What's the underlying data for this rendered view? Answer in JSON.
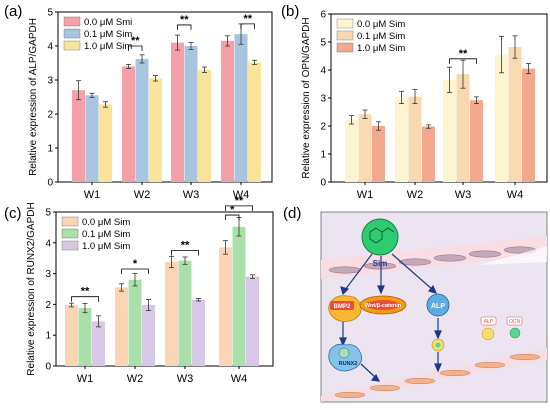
{
  "panels": {
    "a": "(a)",
    "b": "(b)",
    "c": "(c)",
    "d": "(d)"
  },
  "chart_data": [
    {
      "id": "a",
      "type": "bar",
      "ylabel": "Relative expression of ALP/GAPDH",
      "categories": [
        "W1",
        "W2",
        "W3",
        "W4"
      ],
      "ylim": [
        0,
        5
      ],
      "yticks": [
        0,
        1,
        2,
        3,
        4,
        5
      ],
      "legend_position": "top-left",
      "series": [
        {
          "name": "0.0 μM Smi",
          "color": "#f4a0a6",
          "values": [
            2.7,
            3.4,
            4.1,
            4.15
          ],
          "errors": [
            0.28,
            0.06,
            0.22,
            0.15
          ]
        },
        {
          "name": "0.1 μM Sim",
          "color": "#a9c4de",
          "values": [
            2.55,
            3.62,
            4.0,
            4.35
          ],
          "errors": [
            0.06,
            0.12,
            0.1,
            0.3
          ]
        },
        {
          "name": "1.0 μM Sim",
          "color": "#fbe39a",
          "values": [
            2.28,
            3.05,
            3.3,
            3.52
          ],
          "errors": [
            0.08,
            0.08,
            0.08,
            0.06
          ]
        }
      ],
      "annotations": [
        {
          "category": "W2",
          "from": 0,
          "to": 1,
          "y": 4.0,
          "text": "**"
        },
        {
          "category": "W3",
          "from": 0,
          "to": 1,
          "y": 4.62,
          "text": "**"
        },
        {
          "category": "W4",
          "from": 1,
          "to": 2,
          "y": 4.65,
          "text": "**"
        }
      ]
    },
    {
      "id": "b",
      "type": "bar",
      "ylabel": "Relative expression of OPN/GAPDH",
      "categories": [
        "W1",
        "W2",
        "W3",
        "W4"
      ],
      "ylim": [
        0,
        6
      ],
      "yticks": [
        0,
        1,
        2,
        3,
        4,
        5,
        6
      ],
      "legend_position": "top-left",
      "series": [
        {
          "name": "0.0 μM Sim",
          "color": "#fdf5cf",
          "values": [
            2.22,
            3.02,
            3.65,
            4.55
          ],
          "errors": [
            0.15,
            0.22,
            0.45,
            0.65
          ]
        },
        {
          "name": "0.1 μM Sim",
          "color": "#f9d9b0",
          "values": [
            2.42,
            3.05,
            3.85,
            4.82
          ],
          "errors": [
            0.15,
            0.25,
            0.5,
            0.4
          ]
        },
        {
          "name": "1.0 μM Sim",
          "color": "#f3a98e",
          "values": [
            2.0,
            1.98,
            2.92,
            4.05
          ],
          "errors": [
            0.15,
            0.06,
            0.12,
            0.18
          ]
        }
      ],
      "annotations": [
        {
          "category": "W3",
          "from": 0,
          "to": 2,
          "y": 4.4,
          "text": "**"
        }
      ]
    },
    {
      "id": "c",
      "type": "bar",
      "ylabel": "Relative expression of RUNX2/GAPDH",
      "categories": [
        "W1",
        "W2",
        "W3",
        "W4"
      ],
      "ylim": [
        0,
        5
      ],
      "yticks": [
        0,
        1,
        2,
        3,
        4,
        5
      ],
      "legend_position": "top-left",
      "series": [
        {
          "name": "0.0 μM Sim",
          "color": "#fbd4b4",
          "values": [
            1.98,
            2.55,
            3.38,
            3.85
          ],
          "errors": [
            0.06,
            0.12,
            0.18,
            0.22
          ]
        },
        {
          "name": "0.1 μM Sim",
          "color": "#a9dfa9",
          "values": [
            1.88,
            2.8,
            3.42,
            4.52
          ],
          "errors": [
            0.15,
            0.2,
            0.12,
            0.3
          ]
        },
        {
          "name": "1.0 μM Sim",
          "color": "#d8c7e6",
          "values": [
            1.45,
            1.98,
            2.15,
            2.9
          ],
          "errors": [
            0.18,
            0.18,
            0.04,
            0.06
          ]
        }
      ],
      "annotations": [
        {
          "category": "W1",
          "from": 0,
          "to": 2,
          "y": 2.25,
          "text": "**"
        },
        {
          "category": "W2",
          "from": 0,
          "to": 2,
          "y": 3.15,
          "text": "*"
        },
        {
          "category": "W3",
          "from": 0,
          "to": 2,
          "y": 3.75,
          "text": "**"
        },
        {
          "category": "W4",
          "from": 0,
          "to": 1,
          "y": 4.9,
          "text": "*"
        },
        {
          "category": "W4",
          "from": 0,
          "to": 2,
          "y": 5.2,
          "text": "**"
        }
      ]
    }
  ],
  "diagram": {
    "drug_label": "Sim",
    "cell_labels": {
      "bmp2": "BMP2",
      "runx2": "RUNX2",
      "wnt": "Wnt/β-catenin",
      "alp": "ALP",
      "alp_small": "ALP",
      "ocn_small": "OCN"
    },
    "colors": {
      "background": "#ece4f1",
      "tissue": "#f8dde3",
      "drug": "#28b463",
      "arrow": "#1b3a8c"
    }
  }
}
